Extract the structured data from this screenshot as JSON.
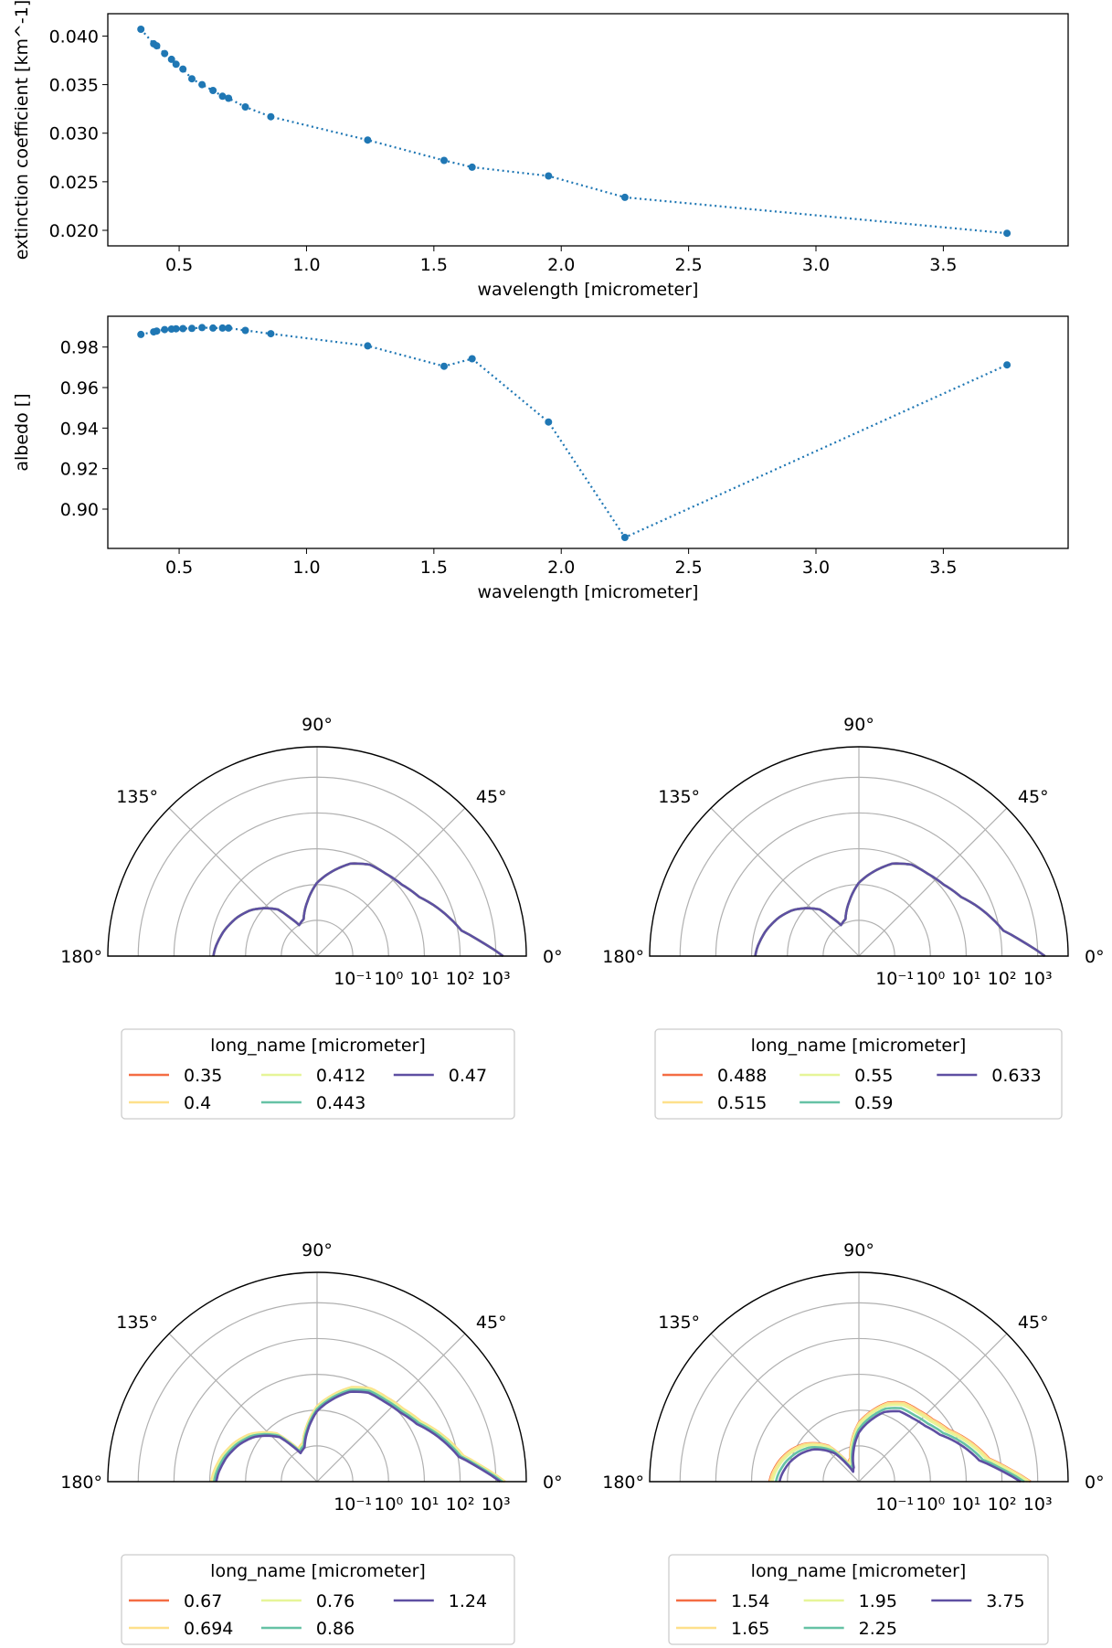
{
  "chart_data": [
    {
      "type": "line",
      "marker": "circle",
      "linestyle": "dotted",
      "color": "#1f77b4",
      "xlabel": "wavelength [micrometer]",
      "ylabel": "extinction coefficient [km^-1]",
      "xlim": [
        0.22,
        3.99
      ],
      "ylim": [
        0.0184,
        0.0423
      ],
      "xticks": [
        0.5,
        1.0,
        1.5,
        2.0,
        2.5,
        3.0,
        3.5
      ],
      "xticklabels": [
        "0.5",
        "1.0",
        "1.5",
        "2.0",
        "2.5",
        "3.0",
        "3.5"
      ],
      "yticks": [
        0.02,
        0.025,
        0.03,
        0.035,
        0.04
      ],
      "yticklabels": [
        "0.020",
        "0.025",
        "0.030",
        "0.035",
        "0.040"
      ],
      "x": [
        0.35,
        0.4,
        0.412,
        0.443,
        0.47,
        0.488,
        0.515,
        0.55,
        0.59,
        0.633,
        0.67,
        0.694,
        0.76,
        0.86,
        1.24,
        1.54,
        1.65,
        1.95,
        2.25,
        3.75
      ],
      "y": [
        0.0407,
        0.0392,
        0.039,
        0.0382,
        0.0376,
        0.0371,
        0.0366,
        0.0356,
        0.035,
        0.0344,
        0.0338,
        0.0336,
        0.0327,
        0.0317,
        0.0293,
        0.0272,
        0.0265,
        0.0256,
        0.0234,
        0.0197
      ]
    },
    {
      "type": "line",
      "marker": "circle",
      "linestyle": "dotted",
      "color": "#1f77b4",
      "xlabel": "wavelength [micrometer]",
      "ylabel": "albedo []",
      "xlim": [
        0.22,
        3.99
      ],
      "ylim": [
        0.8806,
        0.9952
      ],
      "xticks": [
        0.5,
        1.0,
        1.5,
        2.0,
        2.5,
        3.0,
        3.5
      ],
      "xticklabels": [
        "0.5",
        "1.0",
        "1.5",
        "2.0",
        "2.5",
        "3.0",
        "3.5"
      ],
      "yticks": [
        0.9,
        0.92,
        0.94,
        0.96,
        0.98
      ],
      "yticklabels": [
        "0.90",
        "0.92",
        "0.94",
        "0.96",
        "0.98"
      ],
      "x": [
        0.35,
        0.4,
        0.412,
        0.443,
        0.47,
        0.488,
        0.515,
        0.55,
        0.59,
        0.633,
        0.67,
        0.694,
        0.76,
        0.86,
        1.24,
        1.54,
        1.65,
        1.95,
        2.25,
        3.75
      ],
      "y": [
        0.9862,
        0.9875,
        0.9879,
        0.9886,
        0.9889,
        0.989,
        0.9891,
        0.9892,
        0.9896,
        0.9894,
        0.9894,
        0.9894,
        0.9882,
        0.9866,
        0.9806,
        0.9705,
        0.9742,
        0.943,
        0.886,
        0.9712
      ]
    },
    {
      "type": "polar",
      "thetalim": [
        0,
        180
      ],
      "rscale": "log",
      "thetaticklabels": [
        "0°",
        "45°",
        "90°",
        "135°",
        "180°"
      ],
      "rticklabels": [
        "10⁻¹",
        "10⁰",
        "10¹",
        "10²",
        "10³"
      ],
      "legend": {
        "title": "long_name [micrometer]",
        "placement": "below",
        "entries": [
          "0.35",
          "0.4",
          "0.412",
          "0.443",
          "0.47"
        ]
      },
      "series": [
        {
          "name": "0.35",
          "color": "#f46d43",
          "shift": 0.0
        },
        {
          "name": "0.4",
          "color": "#fee08b",
          "shift": 0.0
        },
        {
          "name": "0.412",
          "color": "#e6f598",
          "shift": 0.0
        },
        {
          "name": "0.443",
          "color": "#66c2a5",
          "shift": 0.0
        },
        {
          "name": "0.47",
          "color": "#5e4fa2",
          "shift": 0.0
        }
      ]
    },
    {
      "type": "polar",
      "thetalim": [
        0,
        180
      ],
      "rscale": "log",
      "thetaticklabels": [
        "0°",
        "45°",
        "90°",
        "135°",
        "180°"
      ],
      "rticklabels": [
        "10⁻¹",
        "10⁰",
        "10¹",
        "10²",
        "10³"
      ],
      "legend": {
        "title": "long_name [micrometer]",
        "placement": "below",
        "entries": [
          "0.488",
          "0.515",
          "0.55",
          "0.59",
          "0.633"
        ]
      },
      "series": [
        {
          "name": "0.488",
          "color": "#f46d43",
          "shift": 0.0
        },
        {
          "name": "0.515",
          "color": "#fee08b",
          "shift": 0.0
        },
        {
          "name": "0.55",
          "color": "#e6f598",
          "shift": 0.0
        },
        {
          "name": "0.59",
          "color": "#66c2a5",
          "shift": 0.0
        },
        {
          "name": "0.633",
          "color": "#5e4fa2",
          "shift": 0.0
        }
      ]
    },
    {
      "type": "polar",
      "thetalim": [
        0,
        180
      ],
      "rscale": "log",
      "thetaticklabels": [
        "0°",
        "45°",
        "90°",
        "135°",
        "180°"
      ],
      "rticklabels": [
        "10⁻¹",
        "10⁰",
        "10¹",
        "10²",
        "10³"
      ],
      "legend": {
        "title": "long_name [micrometer]",
        "placement": "below",
        "entries": [
          "0.67",
          "0.694",
          "0.76",
          "0.86",
          "1.24"
        ]
      },
      "series": [
        {
          "name": "0.67",
          "color": "#f46d43",
          "shift": 0.05
        },
        {
          "name": "0.694",
          "color": "#fee08b",
          "shift": 0.06
        },
        {
          "name": "0.76",
          "color": "#e6f598",
          "shift": 0.02
        },
        {
          "name": "0.86",
          "color": "#66c2a5",
          "shift": -0.02
        },
        {
          "name": "1.24",
          "color": "#5e4fa2",
          "shift": -0.08
        }
      ]
    },
    {
      "type": "polar",
      "thetalim": [
        0,
        180
      ],
      "rscale": "log",
      "thetaticklabels": [
        "0°",
        "45°",
        "90°",
        "135°",
        "180°"
      ],
      "rticklabels": [
        "10⁻¹",
        "10⁰",
        "10¹",
        "10²",
        "10³"
      ],
      "legend": {
        "title": "long_name [micrometer]",
        "placement": "below",
        "entries": [
          "1.54",
          "1.65",
          "1.95",
          "2.25",
          "3.75"
        ]
      },
      "series": [
        {
          "name": "1.54",
          "color": "#f46d43",
          "shift": -0.4
        },
        {
          "name": "1.65",
          "color": "#fee08b",
          "shift": -0.42
        },
        {
          "name": "1.95",
          "color": "#e6f598",
          "shift": -0.48
        },
        {
          "name": "2.25",
          "color": "#66c2a5",
          "shift": -0.58
        },
        {
          "name": "3.75",
          "color": "#5e4fa2",
          "shift": -0.68
        }
      ]
    }
  ]
}
